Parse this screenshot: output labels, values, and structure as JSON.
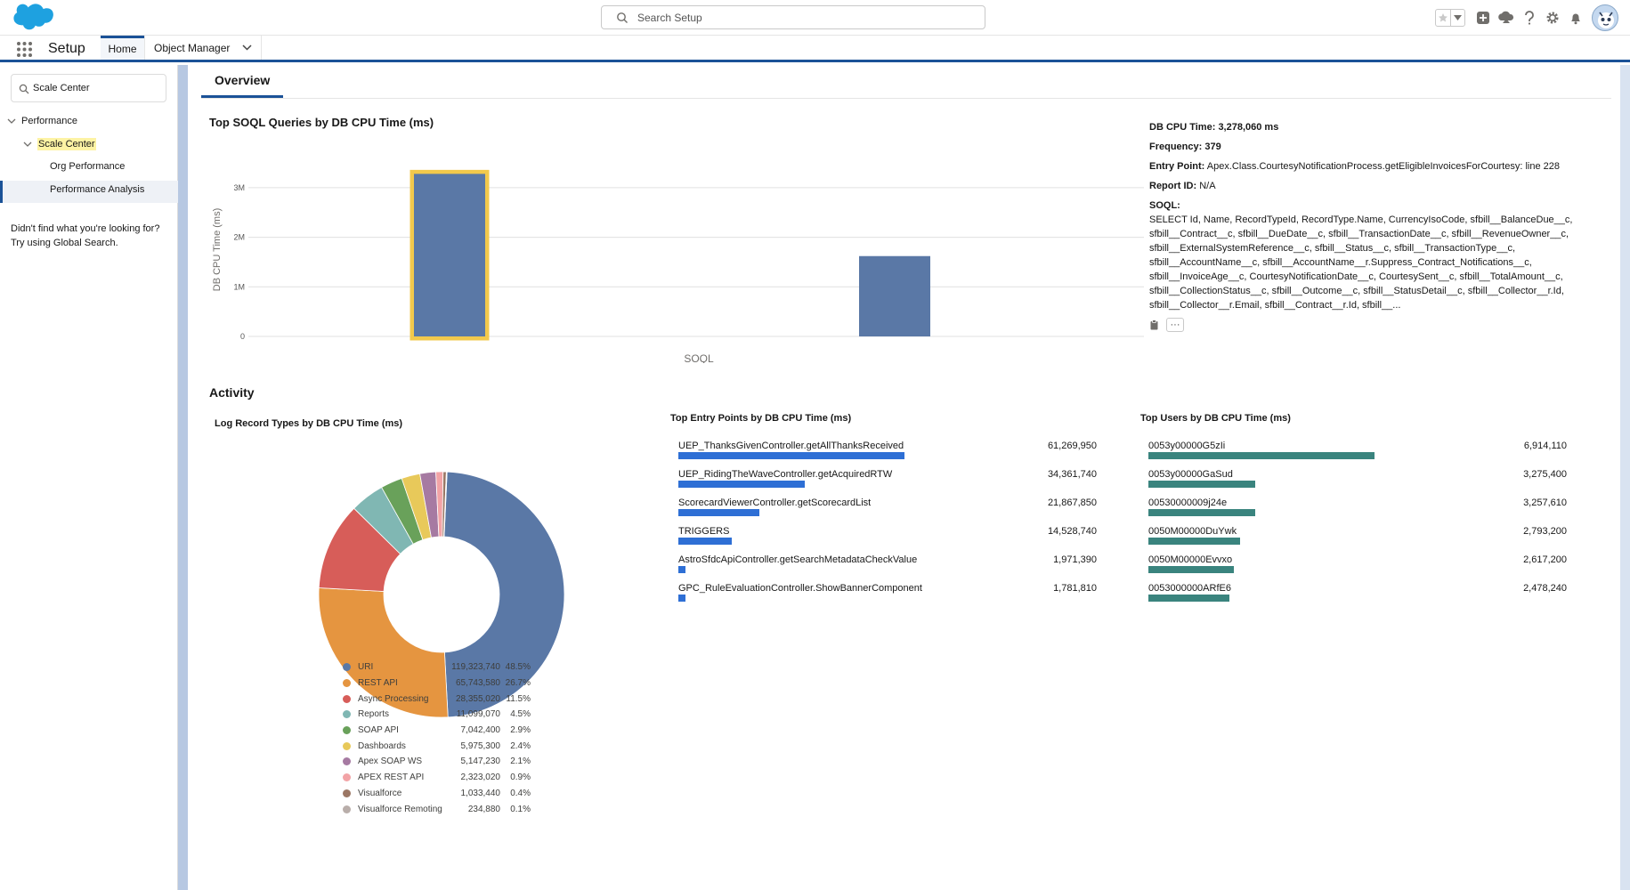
{
  "header": {
    "search_placeholder": "Search Setup",
    "icons": [
      "favorites-star-icon",
      "favorites-dropdown-icon",
      "add-icon",
      "trailhead-icon",
      "help-icon",
      "gear-icon",
      "bell-icon"
    ]
  },
  "nav": {
    "app_name": "Setup",
    "tabs": [
      {
        "label": "Home",
        "active": true
      },
      {
        "label": "Object Manager",
        "active": false
      }
    ]
  },
  "sidebar": {
    "quickfind_value": "Scale Center",
    "tree": {
      "performance": "Performance",
      "scale_center": "Scale Center",
      "org_performance": "Org Performance",
      "performance_analysis": "Performance Analysis"
    },
    "help_line1": "Didn't find what you're looking for?",
    "help_line2": "Try using Global Search."
  },
  "main": {
    "tab_label": "Overview",
    "soql_title": "Top SOQL Queries by DB CPU Time (ms)",
    "activity_title": "Activity",
    "log_types_title": "Log Record Types by DB CPU Time (ms)",
    "entry_points_title": "Top Entry Points by DB CPU Time (ms)",
    "users_title": "Top Users by DB CPU Time (ms)"
  },
  "detail": {
    "cpu_label": "DB CPU Time:",
    "cpu_value": "3,278,060 ms",
    "freq_label": "Frequency:",
    "freq_value": "379",
    "entry_label": "Entry Point:",
    "entry_value": "Apex.Class.CourtesyNotificationProcess.getEligibleInvoicesForCourtesy: line 228",
    "report_label": "Report ID:",
    "report_value": "N/A",
    "soql_label": "SOQL:",
    "soql_value": "SELECT Id, Name, RecordTypeId, RecordType.Name, CurrencyIsoCode, sfbill__BalanceDue__c, sfbill__Contract__c, sfbill__DueDate__c, sfbill__TransactionDate__c, sfbill__RevenueOwner__c, sfbill__ExternalSystemReference__c, sfbill__Status__c, sfbill__TransactionType__c, sfbill__AccountName__c, sfbill__AccountName__r.Suppress_Contract_Notifications__c, sfbill__InvoiceAge__c, CourtesyNotificationDate__c, CourtesySent__c, sfbill__TotalAmount__c, sfbill__CollectionStatus__c, sfbill__Outcome__c, sfbill__StatusDetail__c, sfbill__Collector__r.Id, sfbill__Collector__r.Email, sfbill__Contract__r.Id, sfbill__...",
    "more_label": "···"
  },
  "chart_data": [
    {
      "type": "bar",
      "title": "Top SOQL Queries by DB CPU Time (ms)",
      "xlabel": "SOQL",
      "ylabel": "DB CPU Time (ms)",
      "ylim": [
        0,
        3500000
      ],
      "yticks": [
        0,
        1000000,
        2000000,
        3000000
      ],
      "ytick_labels": [
        "0",
        "1M",
        "2M",
        "3M"
      ],
      "categories": [
        "",
        ""
      ],
      "values": [
        3278060,
        1620000
      ],
      "selected_index": 0,
      "color": "#5a78a6",
      "highlight_color": "#f2c94c",
      "grid": true
    },
    {
      "type": "pie",
      "title": "Log Record Types by DB CPU Time (ms)",
      "donut": true,
      "slices": [
        {
          "label": "URI",
          "value": 119323740,
          "pct": "48.5%",
          "color": "#5a78a6"
        },
        {
          "label": "REST API",
          "value": 65743580,
          "pct": "26.7%",
          "color": "#e59540"
        },
        {
          "label": "Async Processing",
          "value": 28355020,
          "pct": "11.5%",
          "color": "#d75d59"
        },
        {
          "label": "Reports",
          "value": 11099070,
          "pct": "4.5%",
          "color": "#80b7b3"
        },
        {
          "label": "SOAP API",
          "value": 7042400,
          "pct": "2.9%",
          "color": "#69a15a"
        },
        {
          "label": "Dashboards",
          "value": 5975300,
          "pct": "2.4%",
          "color": "#e8c95a"
        },
        {
          "label": "Apex SOAP WS",
          "value": 5147230,
          "pct": "2.1%",
          "color": "#a67aa2"
        },
        {
          "label": "APEX REST API",
          "value": 2323020,
          "pct": "0.9%",
          "color": "#f2a3a6"
        },
        {
          "label": "Visualforce",
          "value": 1033440,
          "pct": "0.4%",
          "color": "#9b7764"
        },
        {
          "label": "Visualforce Remoting",
          "value": 234880,
          "pct": "0.1%",
          "color": "#b9aeaa"
        }
      ],
      "value_labels": [
        "119,323,740",
        "65,743,580",
        "28,355,020",
        "11,099,070",
        "7,042,400",
        "5,975,300",
        "5,147,230",
        "2,323,020",
        "1,033,440",
        "234,880"
      ]
    },
    {
      "type": "bar",
      "title": "Top Entry Points by DB CPU Time (ms)",
      "orientation": "horizontal",
      "color": "#2e6fd5",
      "rows": [
        {
          "label": "UEP_ThanksGivenController.getAllThanksReceived",
          "value": 61269950,
          "value_label": "61,269,950"
        },
        {
          "label": "UEP_RidingTheWaveController.getAcquiredRTW",
          "value": 34361740,
          "value_label": "34,361,740"
        },
        {
          "label": "ScorecardViewerController.getScorecardList",
          "value": 21867850,
          "value_label": "21,867,850"
        },
        {
          "label": "TRIGGERS",
          "value": 14528740,
          "value_label": "14,528,740"
        },
        {
          "label": "AstroSfdcApiController.getSearchMetadataCheckValue",
          "value": 1971390,
          "value_label": "1,971,390"
        },
        {
          "label": "GPC_RuleEvaluationController.ShowBannerComponent",
          "value": 1781810,
          "value_label": "1,781,810"
        }
      ]
    },
    {
      "type": "bar",
      "title": "Top Users by DB CPU Time (ms)",
      "orientation": "horizontal",
      "color": "#3a847e",
      "rows": [
        {
          "label": "0053y00000G5zIi",
          "value": 6914110,
          "value_label": "6,914,110"
        },
        {
          "label": "0053y00000GaSud",
          "value": 3275400,
          "value_label": "3,275,400"
        },
        {
          "label": "00530000009j24e",
          "value": 3257610,
          "value_label": "3,257,610"
        },
        {
          "label": "0050M00000DuYwk",
          "value": 2793200,
          "value_label": "2,793,200"
        },
        {
          "label": "0050M00000Evvxo",
          "value": 2617200,
          "value_label": "2,617,200"
        },
        {
          "label": "0053000000ARfE6",
          "value": 2478240,
          "value_label": "2,478,240"
        }
      ]
    }
  ]
}
